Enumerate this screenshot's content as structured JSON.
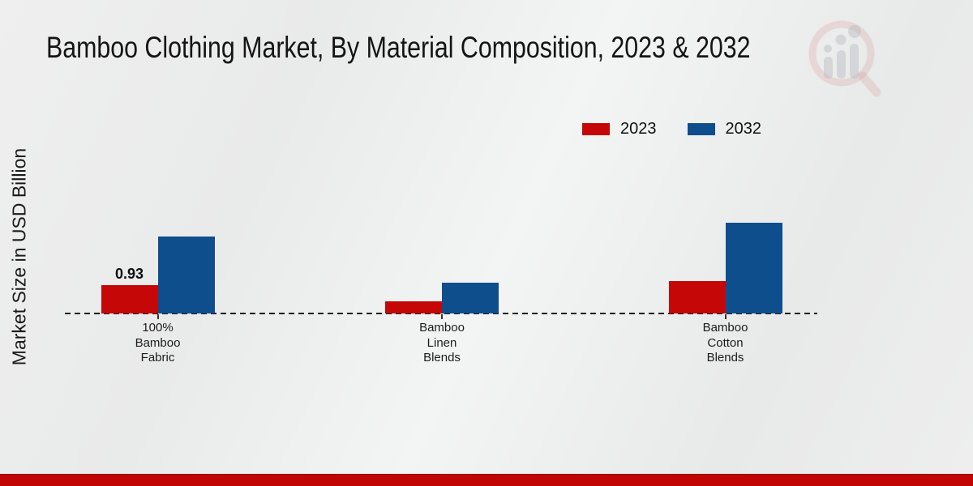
{
  "title": "Bamboo Clothing Market, By Material Composition, 2023 & 2032",
  "ylabel": "Market Size in USD Billion",
  "colors": {
    "series_2023": "#c50707",
    "series_2032": "#0f4e8d",
    "footer_bar": "#c10505",
    "title_text": "#141414"
  },
  "watermark_icon": "magnifier-bar-chart-logo",
  "chart_data": {
    "type": "bar",
    "title": "Bamboo Clothing Market, By Material Composition, 2023 & 2032",
    "xlabel": "",
    "ylabel": "Market Size in USD Billion",
    "categories": [
      "100% Bamboo Fabric",
      "Bamboo Linen Blends",
      "Bamboo Cotton Blends"
    ],
    "category_lines": [
      [
        "100%",
        "Bamboo",
        "Fabric"
      ],
      [
        "Bamboo",
        "Linen",
        "Blends"
      ],
      [
        "Bamboo",
        "Cotton",
        "Blends"
      ]
    ],
    "series": [
      {
        "name": "2023",
        "color": "#c50707",
        "values": [
          0.93,
          0.4,
          1.05
        ]
      },
      {
        "name": "2032",
        "color": "#0f4e8d",
        "values": [
          2.5,
          1.0,
          2.95
        ]
      }
    ],
    "data_labels": [
      {
        "series": "2023",
        "category_index": 0,
        "text": "0.93"
      }
    ],
    "ylim": [
      0,
      3.5
    ],
    "grid": false,
    "legend_position": "top-right",
    "baseline_style": "dashed"
  }
}
